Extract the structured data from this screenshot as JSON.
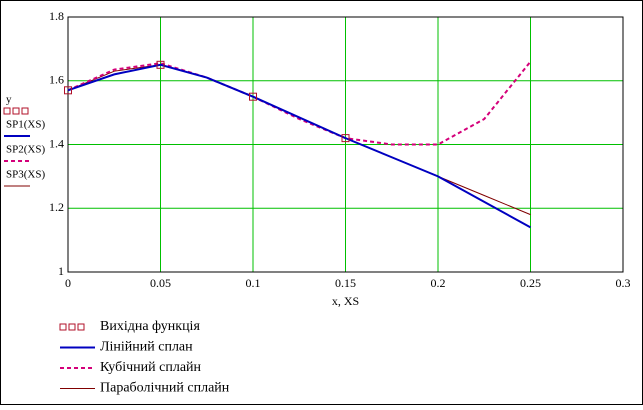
{
  "chart_data": {
    "type": "line",
    "x_label": "x, XS",
    "y_axis_labels": [
      "y",
      "SP1(XS)",
      "SP2(XS)",
      "SP3(XS)"
    ],
    "x": [
      0,
      0.025,
      0.05,
      0.075,
      0.1,
      0.125,
      0.15,
      0.175,
      0.2,
      0.225,
      0.25
    ],
    "series": [
      {
        "name": "Вихідна функція",
        "color": "#b0102a",
        "style": "markers",
        "values": [
          1.57,
          null,
          1.65,
          null,
          1.55,
          null,
          1.42,
          null,
          null,
          null,
          null
        ]
      },
      {
        "name": "Лінійний сплан",
        "color": "#0000c0",
        "style": "solid",
        "values": [
          1.57,
          1.62,
          1.65,
          1.61,
          1.55,
          1.485,
          1.42,
          1.36,
          1.3,
          1.22,
          1.14
        ]
      },
      {
        "name": "Кубічний сплайн",
        "color": "#d4007a",
        "style": "dashed",
        "values": [
          1.57,
          1.635,
          1.655,
          1.61,
          1.55,
          1.48,
          1.42,
          1.4,
          1.4,
          1.48,
          1.66
        ]
      },
      {
        "name": "Параболічний сплайн",
        "color": "#800000",
        "style": "thin",
        "values": [
          1.57,
          1.63,
          1.65,
          1.61,
          1.55,
          1.485,
          1.42,
          1.36,
          1.3,
          1.24,
          1.18
        ]
      }
    ],
    "xlim": [
      0,
      0.3
    ],
    "xticks": [
      0,
      0.05,
      0.1,
      0.15,
      0.2,
      0.25,
      0.3
    ],
    "ylim": [
      1,
      1.8
    ],
    "yticks": [
      1,
      1.2,
      1.4,
      1.6,
      1.8
    ],
    "grid": true,
    "grid_color": "#00c000"
  }
}
